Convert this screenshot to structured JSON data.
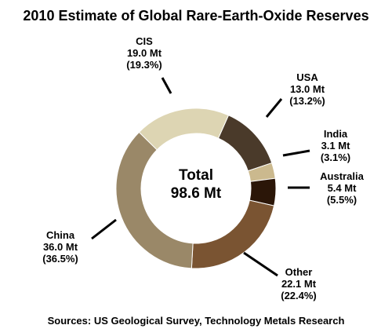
{
  "chart_data": {
    "type": "pie",
    "title": "2010 Estimate of Global Rare-Earth-Oxide Reserves",
    "center_label": {
      "line1": "Total",
      "line2": "98.6 Mt"
    },
    "slices": [
      {
        "name": "USA",
        "value_text": "13.0 Mt",
        "percent_text": "(13.2%)",
        "value": 13.0,
        "percent": 13.2,
        "color": "#4a3a2a"
      },
      {
        "name": "India",
        "value_text": "3.1 Mt",
        "percent_text": "(3.1%)",
        "value": 3.1,
        "percent": 3.1,
        "color": "#cbb98e"
      },
      {
        "name": "Australia",
        "value_text": "5.4 Mt",
        "percent_text": "(5.5%)",
        "value": 5.4,
        "percent": 5.5,
        "color": "#2b1608"
      },
      {
        "name": "Other",
        "value_text": "22.1 Mt",
        "percent_text": "(22.4%)",
        "value": 22.1,
        "percent": 22.4,
        "color": "#7a5432"
      },
      {
        "name": "China",
        "value_text": "36.0 Mt",
        "percent_text": "(36.5%)",
        "value": 36.0,
        "percent": 36.5,
        "color": "#9a8868"
      },
      {
        "name": "CIS",
        "value_text": "19.0 Mt",
        "percent_text": "(19.3%)",
        "value": 19.0,
        "percent": 19.3,
        "color": "#ddd5b3"
      }
    ],
    "source": "Sources: US Geological Survey, Technology Metals Research"
  }
}
